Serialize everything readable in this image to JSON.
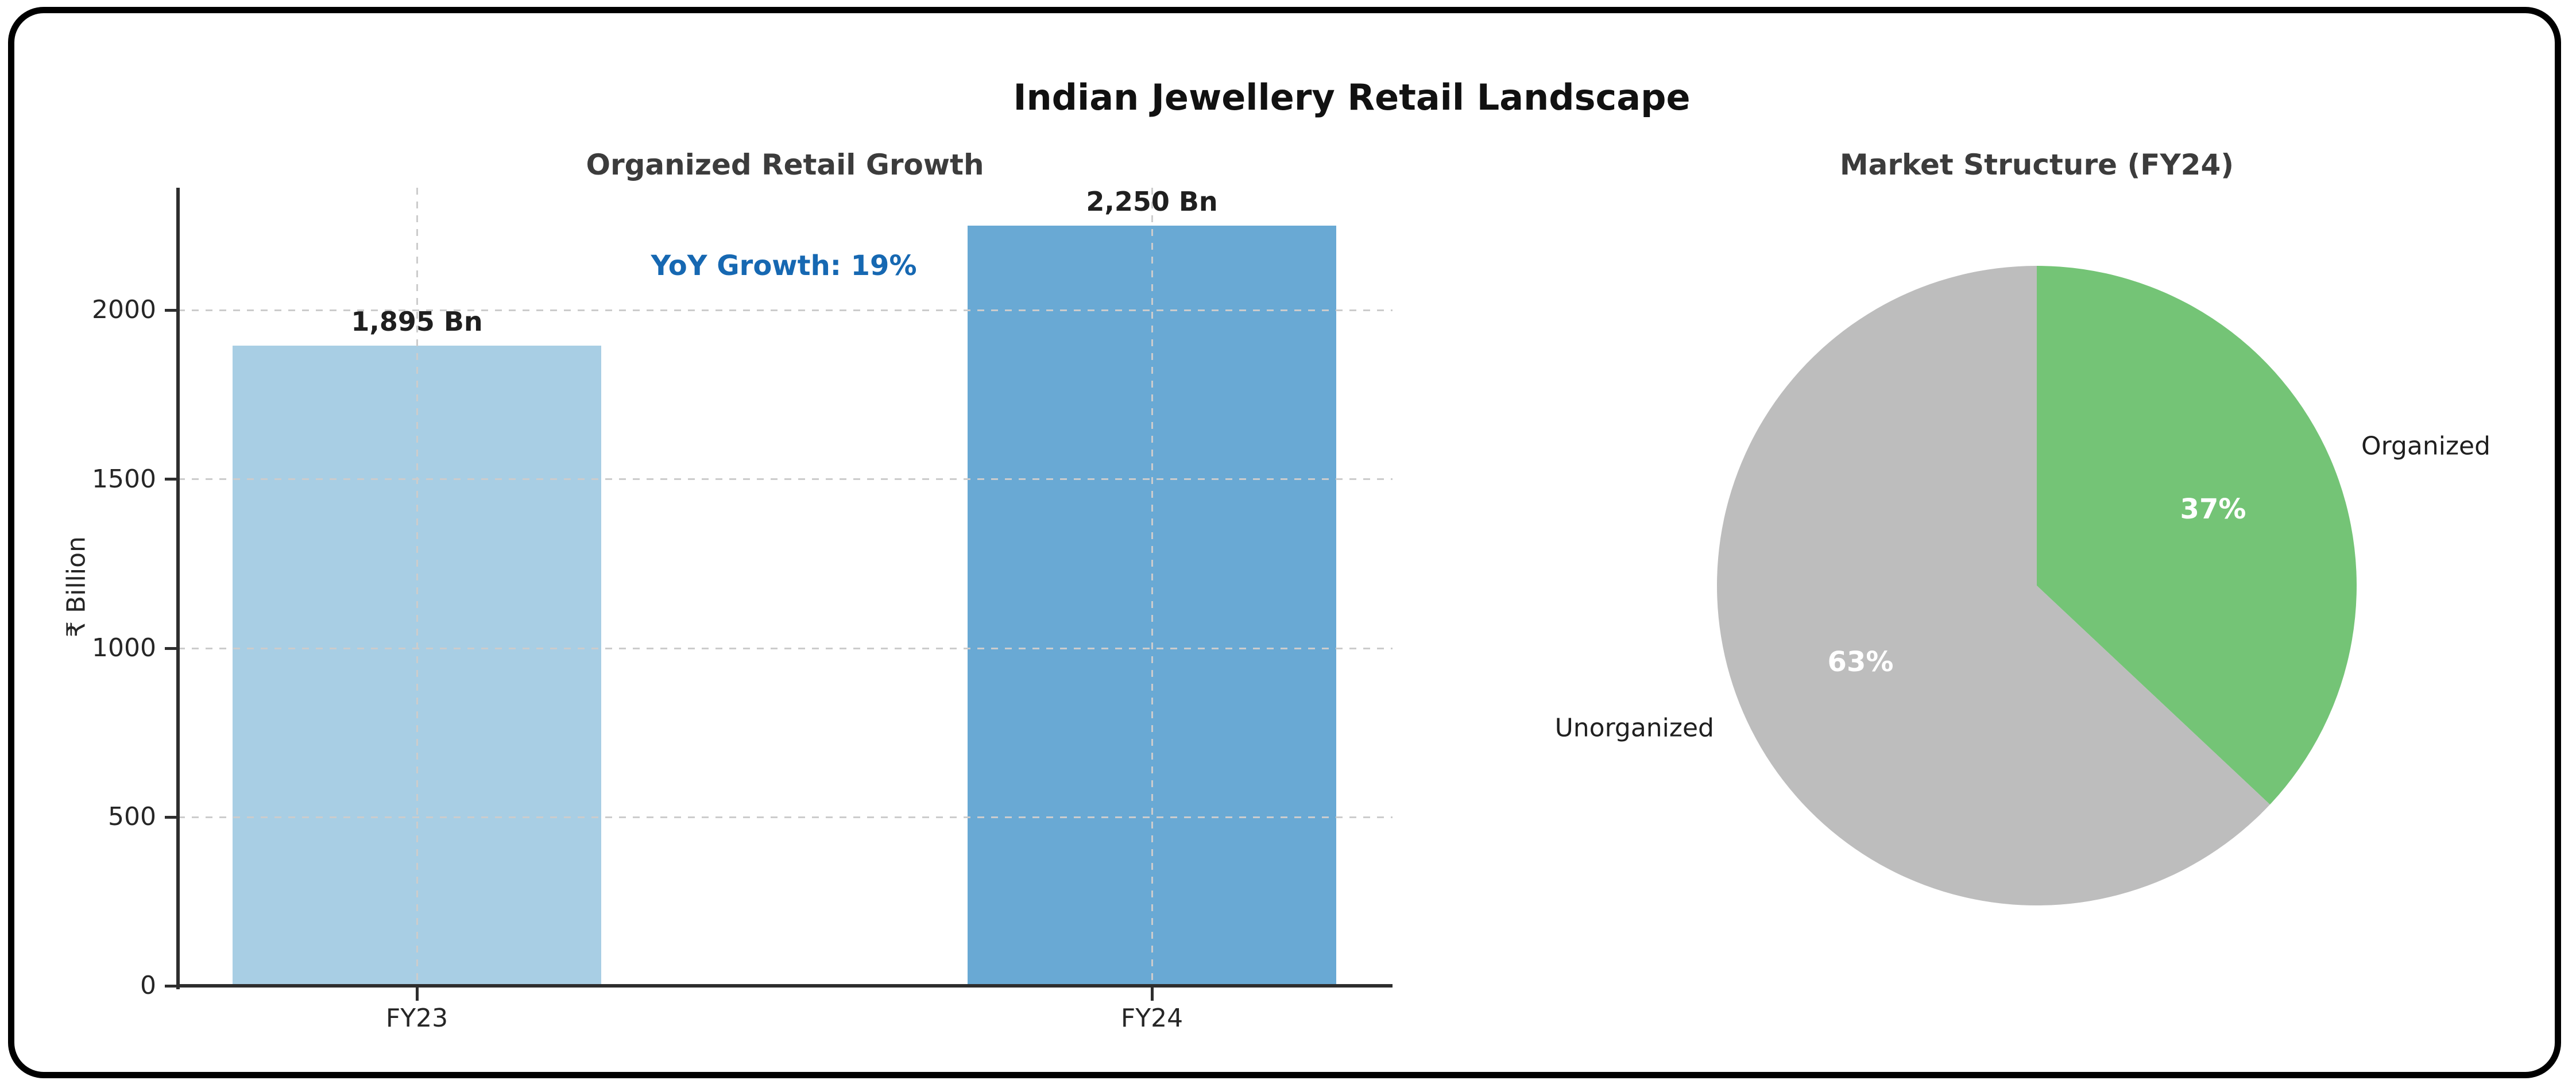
{
  "figure": {
    "title": "Indian Jewellery Retail Landscape",
    "background": "#ffffff",
    "border_color": "#000000"
  },
  "chart_data": [
    {
      "type": "bar",
      "title": "Organized Retail Growth",
      "ylabel": "₹ Billion",
      "categories": [
        "FY23",
        "FY24"
      ],
      "values": [
        1895,
        2250
      ],
      "bar_labels": [
        "1,895 Bn",
        "2,250 Bn"
      ],
      "bar_colors": [
        "#a8cee4",
        "#69a9d4"
      ],
      "annotation": {
        "text": "YoY Growth: 19%",
        "color": "#1668b2"
      },
      "y_ticks": [
        0,
        500,
        1000,
        1500,
        2000
      ],
      "ylim": [
        0,
        2362
      ],
      "grid": true,
      "grid_style": "dashed",
      "grid_color": "#cccccc",
      "spine_color": "#2e2e2e",
      "tick_color": "#262626",
      "title_color": "#3c3c3c"
    },
    {
      "type": "pie",
      "title": "Market Structure (FY24)",
      "labels": [
        "Organized",
        "Unorganized"
      ],
      "values": [
        37,
        63
      ],
      "pct_labels": [
        "37%",
        "63%"
      ],
      "colors": [
        "#74c476",
        "#bdbdbd"
      ],
      "start_angle": 90,
      "clockwise": true,
      "pct_text_color": "#ffffff",
      "title_color": "#3c3c3c"
    }
  ]
}
